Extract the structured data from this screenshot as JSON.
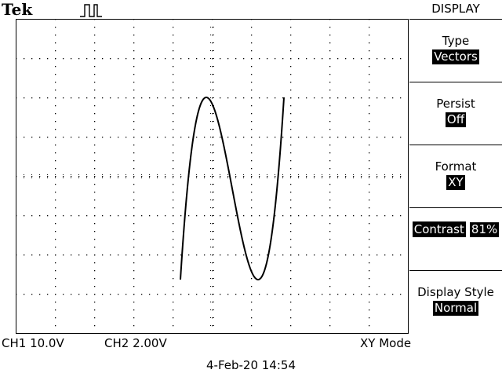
{
  "brand": "Tek",
  "menu": {
    "title": "DISPLAY",
    "items": [
      {
        "label": "Type",
        "value": "Vectors"
      },
      {
        "label": "Persist",
        "value": "Off"
      },
      {
        "label": "Format",
        "value": "XY"
      },
      {
        "label": "Contrast",
        "value": "81%"
      },
      {
        "label": "Display Style",
        "value": "Normal"
      }
    ]
  },
  "status": {
    "ch1": "CH1  10.0V",
    "ch2": "CH2  2.00V",
    "mode": "XY Mode"
  },
  "datetime": "4-Feb-20 14:54"
}
